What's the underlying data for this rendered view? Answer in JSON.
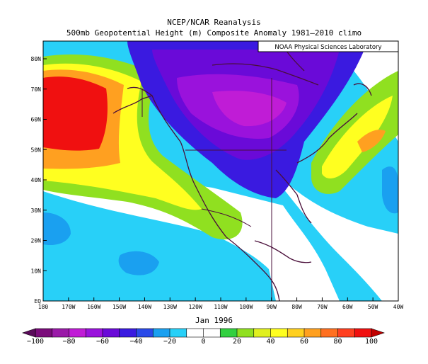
{
  "title_line1": "NCEP/NCAR Reanalysis",
  "title_line2": "500mb Geopotential Height (m) Composite Anomaly 1981–2010 climo",
  "credit": "NOAA Physical Sciences Laboratory",
  "period": "Jan 1996",
  "lat_ticks": [
    "EQ",
    "10N",
    "20N",
    "30N",
    "40N",
    "50N",
    "60N",
    "70N",
    "80N"
  ],
  "lon_ticks": [
    "180",
    "170W",
    "160W",
    "150W",
    "140W",
    "130W",
    "120W",
    "110W",
    "100W",
    "90W",
    "80W",
    "70W",
    "60W",
    "50W",
    "40W"
  ],
  "colorbar_labels": [
    "−100",
    "−80",
    "−60",
    "−40",
    "−20",
    "0",
    "20",
    "40",
    "60",
    "80",
    "100"
  ],
  "colorbar_colors": [
    "#7a0b7a",
    "#9a1aa8",
    "#c01cd6",
    "#9a12dc",
    "#6a0ad8",
    "#3a1ae0",
    "#2a4ae8",
    "#1aa0f0",
    "#28d0f8",
    "#ffffff",
    "#ffffff",
    "#32d040",
    "#90e020",
    "#e0f020",
    "#ffff20",
    "#ffd020",
    "#ffa020",
    "#ff7020",
    "#ff4020",
    "#f01010"
  ],
  "colors": {
    "neg_light": "#28d0f8",
    "neg_mid": "#1aa0f0",
    "neg_strong": "#3a1ae0",
    "neg_deep": "#6a0ad8",
    "neg_core": "#9a12dc",
    "pos_light": "#90e020",
    "pos_mid": "#ffff20",
    "pos_strong": "#ffa020",
    "pos_core": "#f01010",
    "coast": "#4a0f3a"
  }
}
